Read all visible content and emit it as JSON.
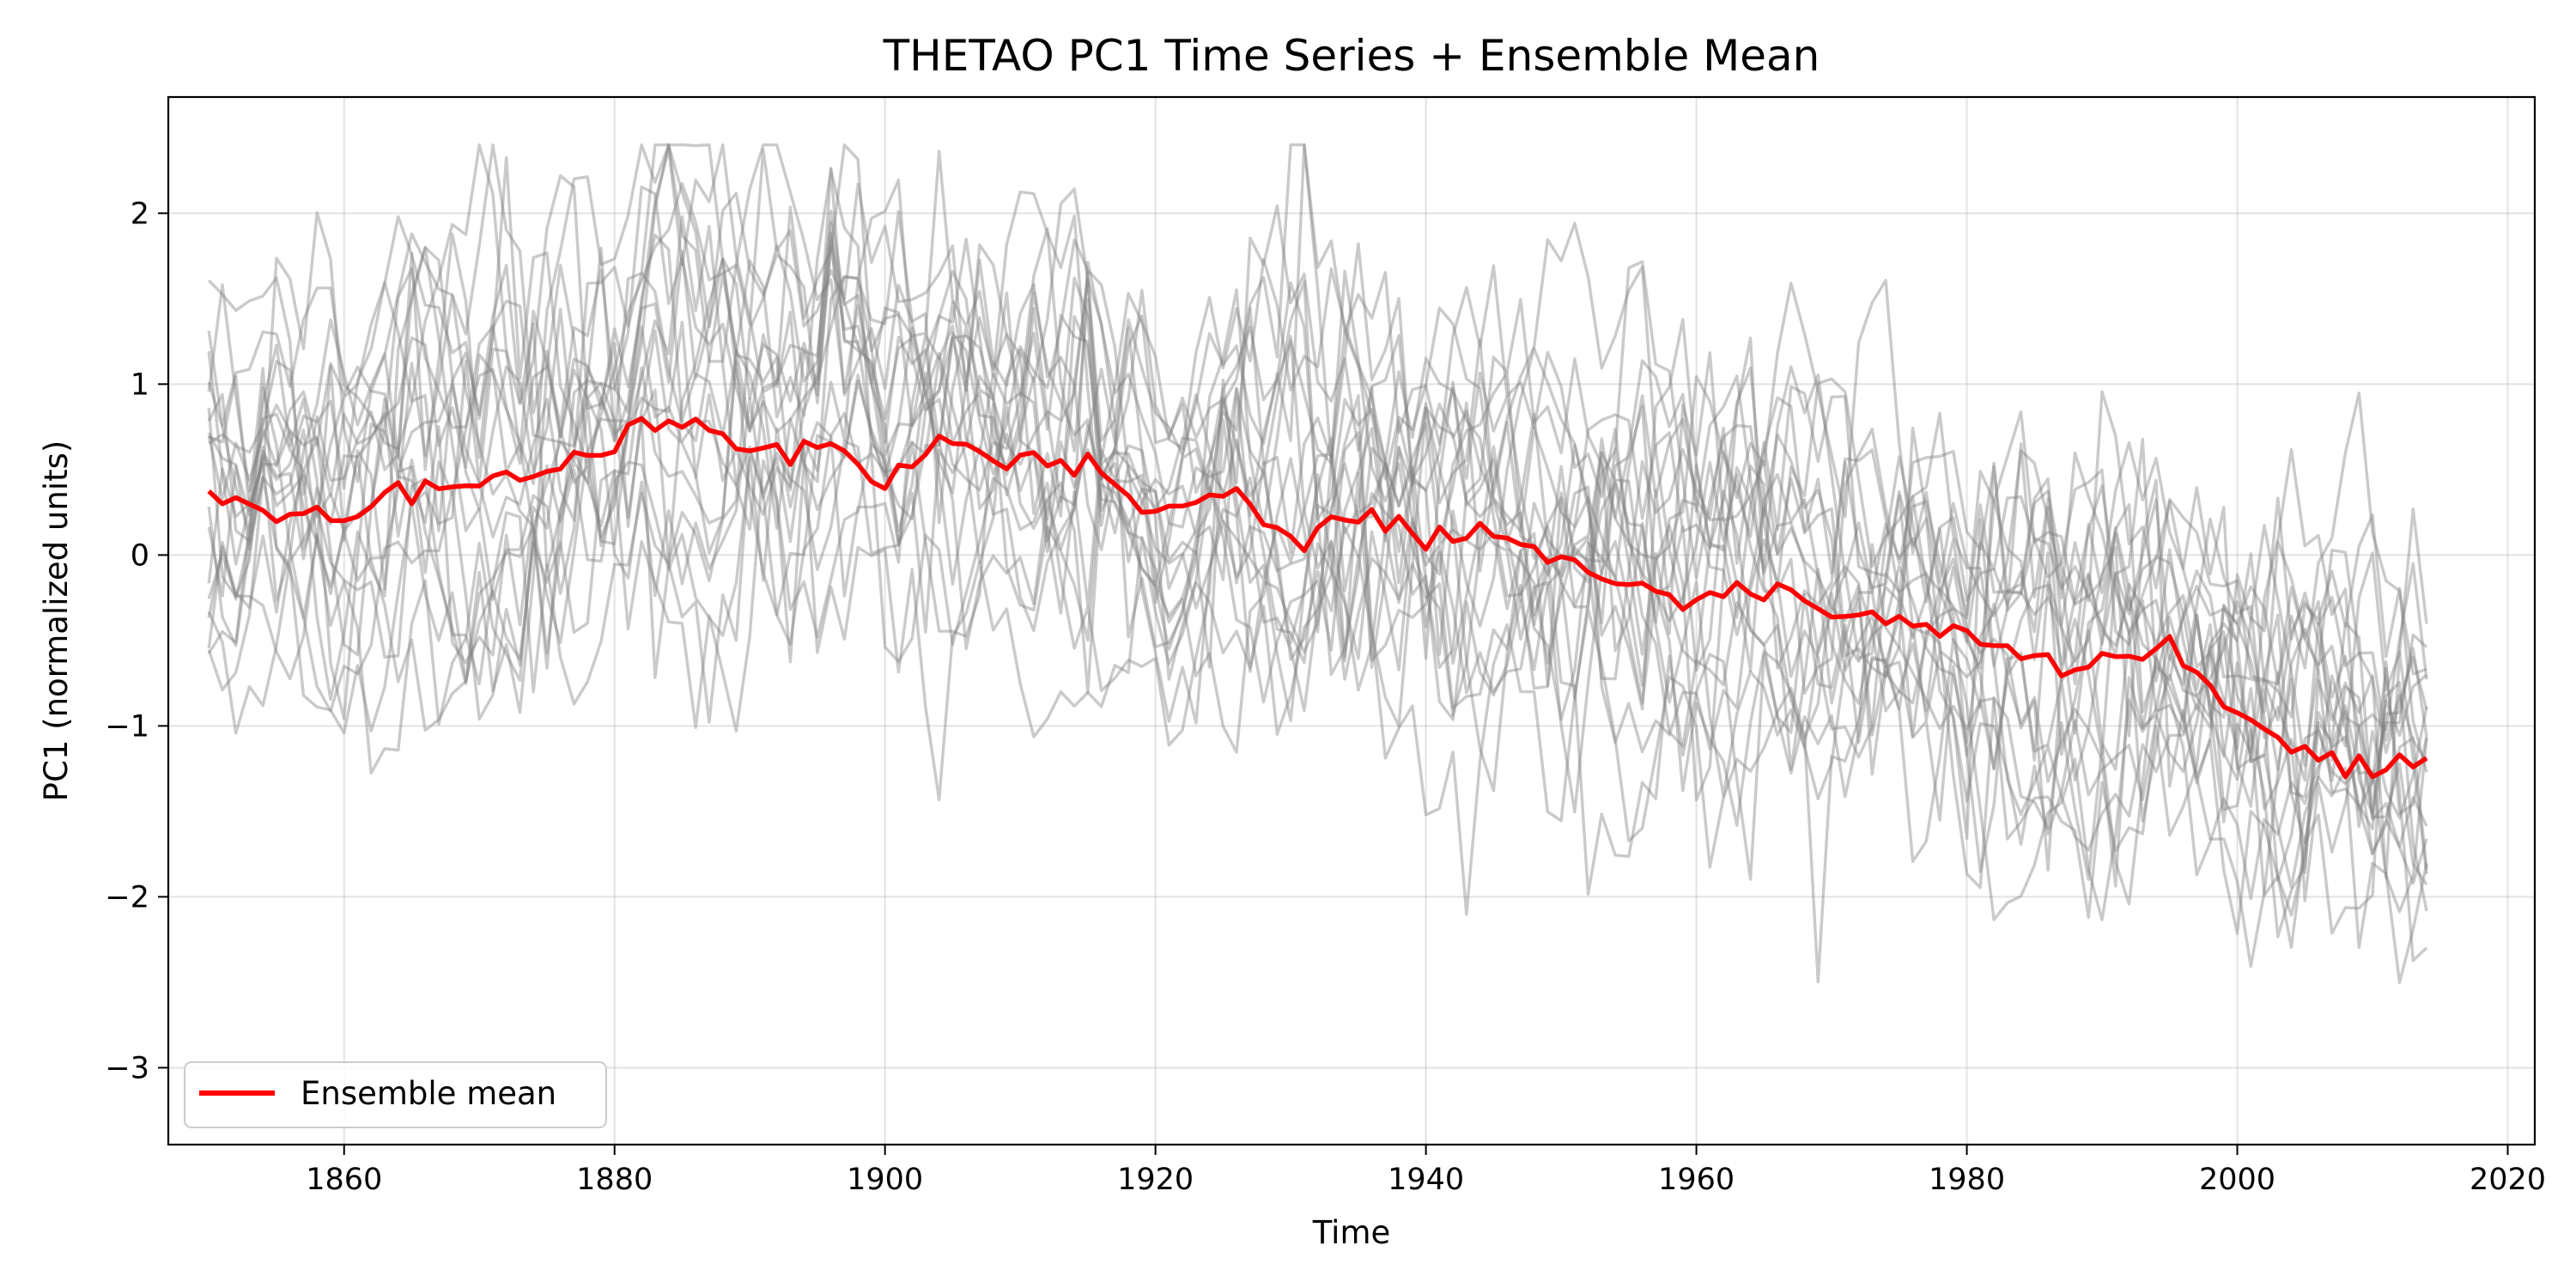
{
  "chart_data": {
    "type": "line",
    "title": "THETAO PC1 Time Series + Ensemble Mean",
    "xlabel": "Time",
    "ylabel": "PC1 (normalized units)",
    "xlim": [
      1847,
      2022
    ],
    "ylim": [
      -3.45,
      2.68
    ],
    "xticks": [
      1860,
      1880,
      1900,
      1920,
      1940,
      1960,
      1980,
      2000,
      2020
    ],
    "yticks": [
      -3,
      -2,
      -1,
      0,
      1,
      2
    ],
    "grid": true,
    "legend_position": "lower-left",
    "x_start": 1850,
    "x_end": 2014,
    "member_count": 20,
    "member_color": "#808080",
    "mean_color": "#ff0000",
    "ensemble_mean": {
      "name": "Ensemble mean",
      "x": [
        1850,
        1855,
        1860,
        1865,
        1870,
        1875,
        1880,
        1885,
        1890,
        1895,
        1900,
        1905,
        1910,
        1915,
        1920,
        1925,
        1930,
        1935,
        1940,
        1945,
        1950,
        1955,
        1960,
        1965,
        1970,
        1975,
        1980,
        1985,
        1990,
        1995,
        2000,
        2005,
        2010,
        2014
      ],
      "values": [
        0.31,
        0.22,
        0.18,
        0.42,
        0.41,
        0.5,
        0.63,
        0.84,
        0.6,
        0.63,
        0.46,
        0.68,
        0.53,
        0.54,
        0.25,
        0.38,
        0.1,
        0.25,
        0.1,
        0.13,
        -0.02,
        -0.16,
        -0.3,
        -0.17,
        -0.38,
        -0.36,
        -0.48,
        -0.63,
        -0.65,
        -0.53,
        -0.97,
        -1.12,
        -1.24,
        -1.23
      ]
    }
  }
}
